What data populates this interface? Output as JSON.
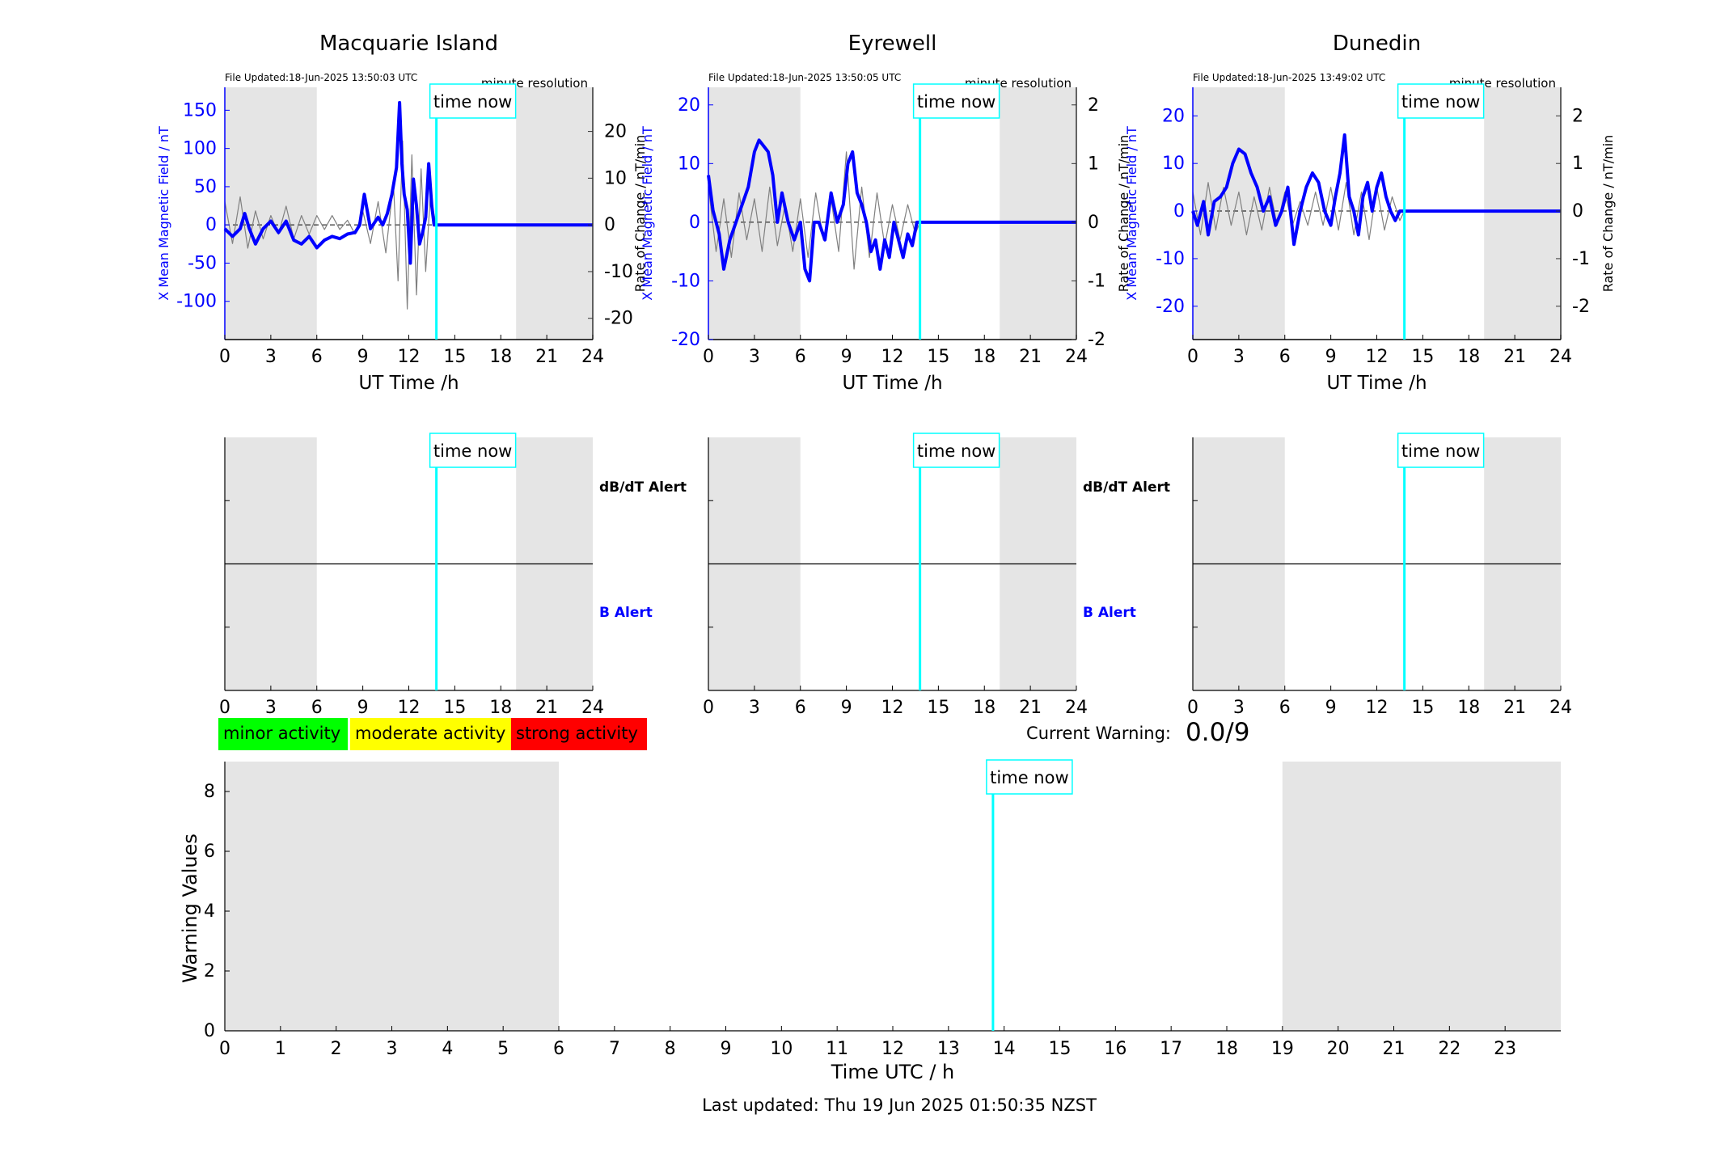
{
  "colors": {
    "field_line": "#0000ff",
    "rate_line": "#808080",
    "time_now": "#00ffff",
    "shade": "#e5e5e5",
    "minor": "#00ff00",
    "moderate": "#ffff00",
    "strong": "#ff0000",
    "axis_left": "#0000ff",
    "axis_right": "#333333"
  },
  "time_now_label": "time now",
  "xlabel_station": "UT Time /h",
  "station_y_left_label": "X Mean Magnetic Field / nT",
  "station_y_right_label": "Rate of Change / nT/min",
  "resolution_label": "minute resolution",
  "alert_labels": {
    "dbdt": "dB/dT Alert",
    "b": "B Alert"
  },
  "legend": {
    "minor": "minor activity",
    "moderate": "moderate activity",
    "strong": "strong activity"
  },
  "current_warning": {
    "label": "Current Warning:",
    "value": "0.0/9"
  },
  "footer": "Last updated: Thu 19 Jun 2025 01:50:35 NZST",
  "chart_data": [
    {
      "type": "line",
      "title": "Macquarie Island",
      "file_updated": "File Updated:18-Jun-2025 13:50:03 UTC",
      "xlabel": "UT Time /h",
      "ylabel": "X Mean Magnetic Field / nT",
      "ylabel_right": "Rate of Change / nT/min",
      "xlim": [
        0,
        24
      ],
      "ylim": [
        -150,
        180
      ],
      "ylim_right": [
        -24.55,
        29.45
      ],
      "xticks": [
        0,
        3,
        6,
        9,
        12,
        15,
        18,
        21,
        24
      ],
      "yticks": [
        -100,
        -50,
        0,
        50,
        100,
        150
      ],
      "yticks_right": [
        -20,
        -10,
        0,
        10,
        20
      ],
      "shaded_intervals": [
        [
          0,
          6
        ],
        [
          19,
          24
        ]
      ],
      "time_now": 13.8,
      "series": [
        {
          "name": "X Mean Magnetic Field",
          "axis": "left",
          "x": [
            0,
            0.5,
            1,
            1.3,
            1.6,
            2,
            2.5,
            3,
            3.5,
            4,
            4.5,
            5,
            5.5,
            6,
            6.5,
            7,
            7.5,
            8,
            8.5,
            8.8,
            9.1,
            9.5,
            10,
            10.3,
            10.6,
            10.9,
            11.2,
            11.4,
            11.55,
            11.7,
            11.9,
            12.1,
            12.3,
            12.5,
            12.7,
            12.9,
            13.1,
            13.3,
            13.5,
            13.65,
            13.8,
            24
          ],
          "y": [
            -5,
            -15,
            -5,
            15,
            -5,
            -25,
            -5,
            5,
            -10,
            5,
            -20,
            -25,
            -15,
            -30,
            -20,
            -15,
            -18,
            -12,
            -10,
            0,
            40,
            -5,
            10,
            0,
            15,
            40,
            75,
            160,
            80,
            40,
            20,
            -50,
            60,
            25,
            -25,
            -10,
            10,
            80,
            25,
            0,
            0,
            0
          ]
        },
        {
          "name": "Rate of Change",
          "axis": "right",
          "x": [
            0,
            0.5,
            1,
            1.5,
            2,
            2.5,
            3,
            3.5,
            4,
            4.5,
            5,
            5.5,
            6,
            6.5,
            7,
            7.5,
            8,
            8.5,
            9,
            9.5,
            10,
            10.5,
            11,
            11.3,
            11.6,
            11.9,
            12.2,
            12.5,
            12.8,
            13.1,
            13.4,
            13.8
          ],
          "y": [
            5,
            -4,
            6,
            -5,
            3,
            -3,
            2,
            -2,
            4,
            -3,
            2,
            -2,
            2,
            -1,
            2,
            -1,
            1,
            -2,
            3,
            -4,
            5,
            -6,
            9,
            -12,
            18,
            -18,
            15,
            -15,
            12,
            -10,
            6,
            0
          ]
        }
      ]
    },
    {
      "type": "line",
      "title": "Eyrewell",
      "file_updated": "File Updated:18-Jun-2025 13:50:05 UTC",
      "xlabel": "UT Time /h",
      "ylabel": "X Mean Magnetic Field / nT",
      "ylabel_right": "Rate of Change / nT/min",
      "xlim": [
        0,
        24
      ],
      "ylim": [
        -20,
        23
      ],
      "ylim_right": [
        -2,
        2.3
      ],
      "xticks": [
        0,
        3,
        6,
        9,
        12,
        15,
        18,
        21,
        24
      ],
      "yticks": [
        -20,
        -10,
        0,
        10,
        20
      ],
      "yticks_right": [
        -2,
        -1,
        0,
        1,
        2
      ],
      "shaded_intervals": [
        [
          0,
          6
        ],
        [
          19,
          24
        ]
      ],
      "time_now": 13.8,
      "series": [
        {
          "name": "X Mean Magnetic Field",
          "axis": "left",
          "x": [
            0,
            0.3,
            0.7,
            1,
            1.4,
            1.8,
            2.2,
            2.6,
            3,
            3.3,
            3.6,
            3.9,
            4.2,
            4.5,
            4.8,
            5.2,
            5.6,
            6,
            6.3,
            6.6,
            6.9,
            7.2,
            7.6,
            8,
            8.4,
            8.8,
            9.1,
            9.4,
            9.7,
            10,
            10.3,
            10.6,
            10.9,
            11.2,
            11.5,
            11.8,
            12.1,
            12.4,
            12.7,
            13,
            13.3,
            13.6,
            13.8,
            24
          ],
          "y": [
            8,
            2,
            -2,
            -8,
            -3,
            0,
            3,
            6,
            12,
            14,
            13,
            12,
            8,
            0,
            5,
            0,
            -3,
            0,
            -8,
            -10,
            0,
            0,
            -3,
            5,
            0,
            3,
            10,
            12,
            5,
            3,
            0,
            -5,
            -3,
            -8,
            -3,
            -6,
            0,
            -3,
            -6,
            -2,
            -4,
            0,
            0,
            0
          ]
        },
        {
          "name": "Rate of Change",
          "axis": "right",
          "x": [
            0,
            0.5,
            1,
            1.5,
            2,
            2.5,
            3,
            3.5,
            4,
            4.5,
            5,
            5.5,
            6,
            6.5,
            7,
            7.5,
            8,
            8.5,
            9,
            9.5,
            10,
            10.5,
            11,
            11.5,
            12,
            12.5,
            13,
            13.5,
            13.8
          ],
          "y": [
            0.6,
            -0.5,
            0.4,
            -0.6,
            0.5,
            -0.3,
            0.4,
            -0.5,
            0.6,
            -0.4,
            0.3,
            -0.5,
            0.4,
            -0.6,
            0.5,
            -0.3,
            0.4,
            -0.5,
            1.2,
            -0.8,
            0.6,
            -0.6,
            0.5,
            -0.4,
            0.3,
            -0.3,
            0.3,
            -0.2,
            0
          ]
        }
      ]
    },
    {
      "type": "line",
      "title": "Dunedin",
      "file_updated": "File Updated:18-Jun-2025 13:49:02 UTC",
      "xlabel": "UT Time /h",
      "ylabel": "X Mean Magnetic Field / nT",
      "ylabel_right": "Rate of Change / nT/min",
      "xlim": [
        0,
        24
      ],
      "ylim": [
        -27,
        26
      ],
      "ylim_right": [
        -2.7,
        2.6
      ],
      "xticks": [
        0,
        3,
        6,
        9,
        12,
        15,
        18,
        21,
        24
      ],
      "yticks": [
        -20,
        -10,
        0,
        10,
        20
      ],
      "yticks_right": [
        -2,
        -1,
        0,
        1,
        2
      ],
      "shaded_intervals": [
        [
          0,
          6
        ],
        [
          19,
          24
        ]
      ],
      "time_now": 13.8,
      "series": [
        {
          "name": "X Mean Magnetic Field",
          "axis": "left",
          "x": [
            0,
            0.3,
            0.7,
            1,
            1.4,
            1.8,
            2.2,
            2.6,
            3,
            3.4,
            3.8,
            4.2,
            4.6,
            5,
            5.4,
            5.8,
            6.2,
            6.6,
            7,
            7.4,
            7.8,
            8.2,
            8.6,
            9,
            9.3,
            9.6,
            9.9,
            10.2,
            10.5,
            10.8,
            11.1,
            11.4,
            11.7,
            12,
            12.3,
            12.6,
            12.9,
            13.2,
            13.5,
            13.8,
            24
          ],
          "y": [
            0,
            -3,
            2,
            -5,
            2,
            3,
            5,
            10,
            13,
            12,
            8,
            5,
            0,
            3,
            -3,
            0,
            5,
            -7,
            0,
            5,
            8,
            6,
            0,
            -3,
            3,
            8,
            16,
            3,
            0,
            -5,
            3,
            6,
            0,
            5,
            8,
            3,
            0,
            -2,
            0,
            0,
            0
          ]
        },
        {
          "name": "Rate of Change",
          "axis": "right",
          "x": [
            0,
            0.5,
            1,
            1.5,
            2,
            2.5,
            3,
            3.5,
            4,
            4.5,
            5,
            5.5,
            6,
            6.5,
            7,
            7.5,
            8,
            8.5,
            9,
            9.5,
            10,
            10.5,
            11,
            11.5,
            12,
            12.5,
            13,
            13.5,
            13.8
          ],
          "y": [
            0.4,
            -0.5,
            0.6,
            -0.4,
            0.5,
            -0.3,
            0.4,
            -0.5,
            0.3,
            -0.4,
            0.5,
            -0.3,
            0.4,
            -0.3,
            0.2,
            -0.3,
            0.4,
            -0.3,
            0.5,
            -0.4,
            0.6,
            -0.5,
            0.4,
            -0.6,
            0.5,
            -0.4,
            0.3,
            -0.2,
            0
          ]
        }
      ]
    },
    {
      "type": "line",
      "title": "",
      "xlabel": "",
      "xlim": [
        0,
        24
      ],
      "ylim": [
        -1,
        1
      ],
      "xticks": [
        0,
        3,
        6,
        9,
        12,
        15,
        18,
        21,
        24
      ],
      "shaded_intervals": [
        [
          0,
          6
        ],
        [
          19,
          24
        ]
      ],
      "time_now": 13.8,
      "alert_line": 0
    },
    {
      "type": "line",
      "title": "",
      "xlabel": "",
      "xlim": [
        0,
        24
      ],
      "ylim": [
        -1,
        1
      ],
      "xticks": [
        0,
        3,
        6,
        9,
        12,
        15,
        18,
        21,
        24
      ],
      "shaded_intervals": [
        [
          0,
          6
        ],
        [
          19,
          24
        ]
      ],
      "time_now": 13.8,
      "alert_line": 0
    },
    {
      "type": "line",
      "title": "",
      "xlabel": "",
      "xlim": [
        0,
        24
      ],
      "ylim": [
        -1,
        1
      ],
      "xticks": [
        0,
        3,
        6,
        9,
        12,
        15,
        18,
        21,
        24
      ],
      "shaded_intervals": [
        [
          0,
          6
        ],
        [
          19,
          24
        ]
      ],
      "time_now": 13.8,
      "alert_line": 0
    },
    {
      "type": "bar",
      "title": "",
      "xlabel": "Time UTC / h",
      "ylabel": "Warning Values",
      "xlim": [
        0,
        24
      ],
      "ylim": [
        0,
        9
      ],
      "xticks": [
        0,
        1,
        2,
        3,
        4,
        5,
        6,
        7,
        8,
        9,
        10,
        11,
        12,
        13,
        14,
        15,
        16,
        17,
        18,
        19,
        20,
        21,
        22,
        23
      ],
      "yticks": [
        0,
        2,
        4,
        6,
        8
      ],
      "shaded_intervals": [
        [
          0,
          6
        ],
        [
          19,
          24
        ]
      ],
      "time_now": 13.8,
      "values": []
    }
  ]
}
